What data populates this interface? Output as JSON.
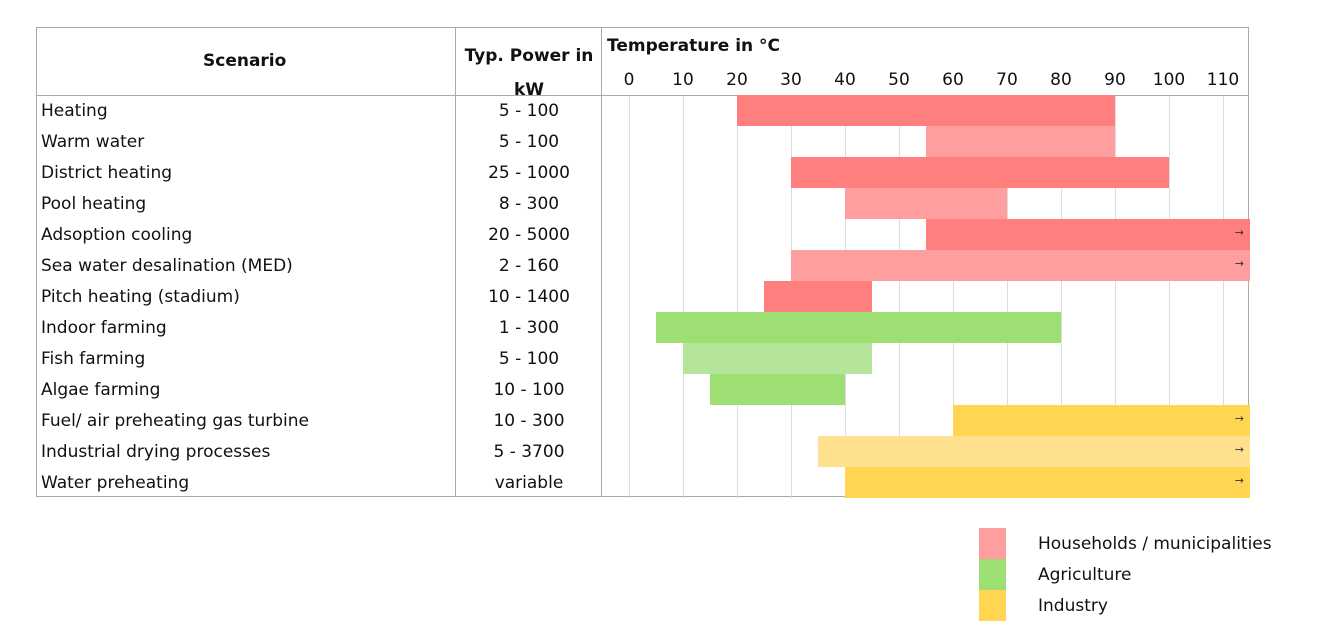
{
  "chart_data": {
    "type": "bar",
    "title": "Temperature in °C",
    "headers": {
      "scenario": "Scenario",
      "power_line1": "Typ. Power in",
      "power_line2": "kW"
    },
    "xlim": [
      -5,
      115
    ],
    "xticks": [
      0,
      10,
      20,
      30,
      40,
      50,
      60,
      70,
      80,
      90,
      100,
      110
    ],
    "rows": [
      {
        "name": "Heating",
        "power": "5 - 100",
        "from": 20,
        "to": 90,
        "category": "Households / municipalities",
        "color": "#ff7f7f",
        "open": false
      },
      {
        "name": "Warm water",
        "power": "5 - 100",
        "from": 55,
        "to": 90,
        "category": "Households / municipalities",
        "color": "#ff9e9e",
        "open": false
      },
      {
        "name": "District heating",
        "power": "25 - 1000",
        "from": 30,
        "to": 100,
        "category": "Households / municipalities",
        "color": "#ff7f7f",
        "open": false
      },
      {
        "name": "Pool heating",
        "power": "8 - 300",
        "from": 40,
        "to": 70,
        "category": "Households / municipalities",
        "color": "#ff9e9e",
        "open": false
      },
      {
        "name": "Adsoption cooling",
        "power": "20 - 5000",
        "from": 55,
        "to": 115,
        "category": "Households / municipalities",
        "color": "#ff7f7f",
        "open": true
      },
      {
        "name": "Sea water desalination (MED)",
        "power": "2 - 160",
        "from": 30,
        "to": 115,
        "category": "Households / municipalities",
        "color": "#ff9e9e",
        "open": true
      },
      {
        "name": "Pitch heating (stadium)",
        "power": "10 - 1400",
        "from": 25,
        "to": 45,
        "category": "Households / municipalities",
        "color": "#ff7f7f",
        "open": false
      },
      {
        "name": "Indoor farming",
        "power": "1 - 300",
        "from": 5,
        "to": 80,
        "category": "Agriculture",
        "color": "#9ddf72",
        "open": false
      },
      {
        "name": "Fish farming",
        "power": "5 - 100",
        "from": 10,
        "to": 45,
        "category": "Agriculture",
        "color": "#b5e59a",
        "open": false
      },
      {
        "name": "Algae farming",
        "power": "10 - 100",
        "from": 15,
        "to": 40,
        "category": "Agriculture",
        "color": "#9ddf72",
        "open": false
      },
      {
        "name": "Fuel/ air preheating gas turbine",
        "power": "10 - 300",
        "from": 60,
        "to": 115,
        "category": "Industry",
        "color": "#ffd552",
        "open": true
      },
      {
        "name": "Industrial drying processes",
        "power": "5 - 3700",
        "from": 35,
        "to": 115,
        "category": "Industry",
        "color": "#ffe08f",
        "open": true
      },
      {
        "name": "Water preheating",
        "power": "variable",
        "from": 40,
        "to": 115,
        "category": "Industry",
        "color": "#ffd552",
        "open": true
      }
    ],
    "legend": [
      {
        "label": "Households / municipalities",
        "color": "#ff9e9e"
      },
      {
        "label": "Agriculture",
        "color": "#9ddf72"
      },
      {
        "label": "Industry",
        "color": "#ffd552"
      }
    ],
    "arrow_glyph": "→"
  }
}
